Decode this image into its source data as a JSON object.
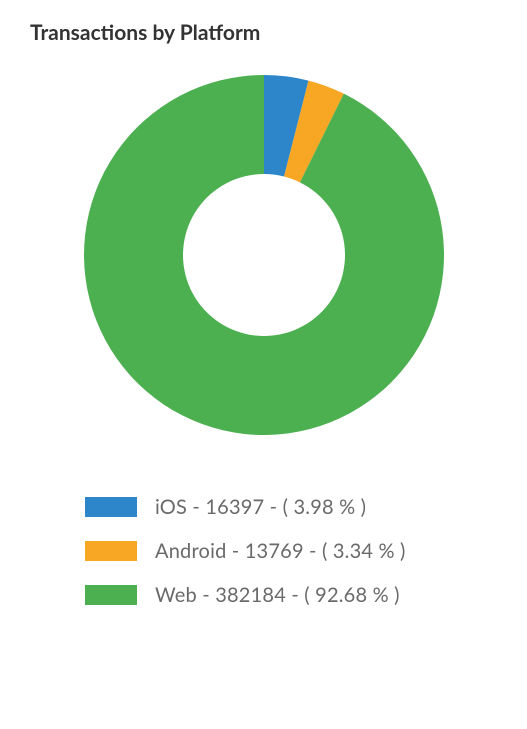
{
  "chart": {
    "title": "Transactions by Platform",
    "type": "donut",
    "inner_radius_ratio": 0.45,
    "start_angle_deg": -90,
    "background_color": "#ffffff",
    "title_color": "#333333",
    "title_fontsize": 21,
    "title_fontweight": 700,
    "series": [
      {
        "name": "iOS",
        "value": 16397,
        "percent": 3.98,
        "color": "#2d86c9",
        "label": "iOS - 16397 - ( 3.98 % )"
      },
      {
        "name": "Android",
        "value": 13769,
        "percent": 3.34,
        "color": "#f7a724",
        "label": "Android - 13769 - ( 3.34 % )"
      },
      {
        "name": "Web",
        "value": 382184,
        "percent": 92.68,
        "color": "#4caf50",
        "label": "Web - 382184 - ( 92.68 % )"
      }
    ],
    "legend": {
      "swatch_width": 52,
      "swatch_height": 20,
      "label_color": "#6a6a6a",
      "label_fontsize": 20
    }
  }
}
